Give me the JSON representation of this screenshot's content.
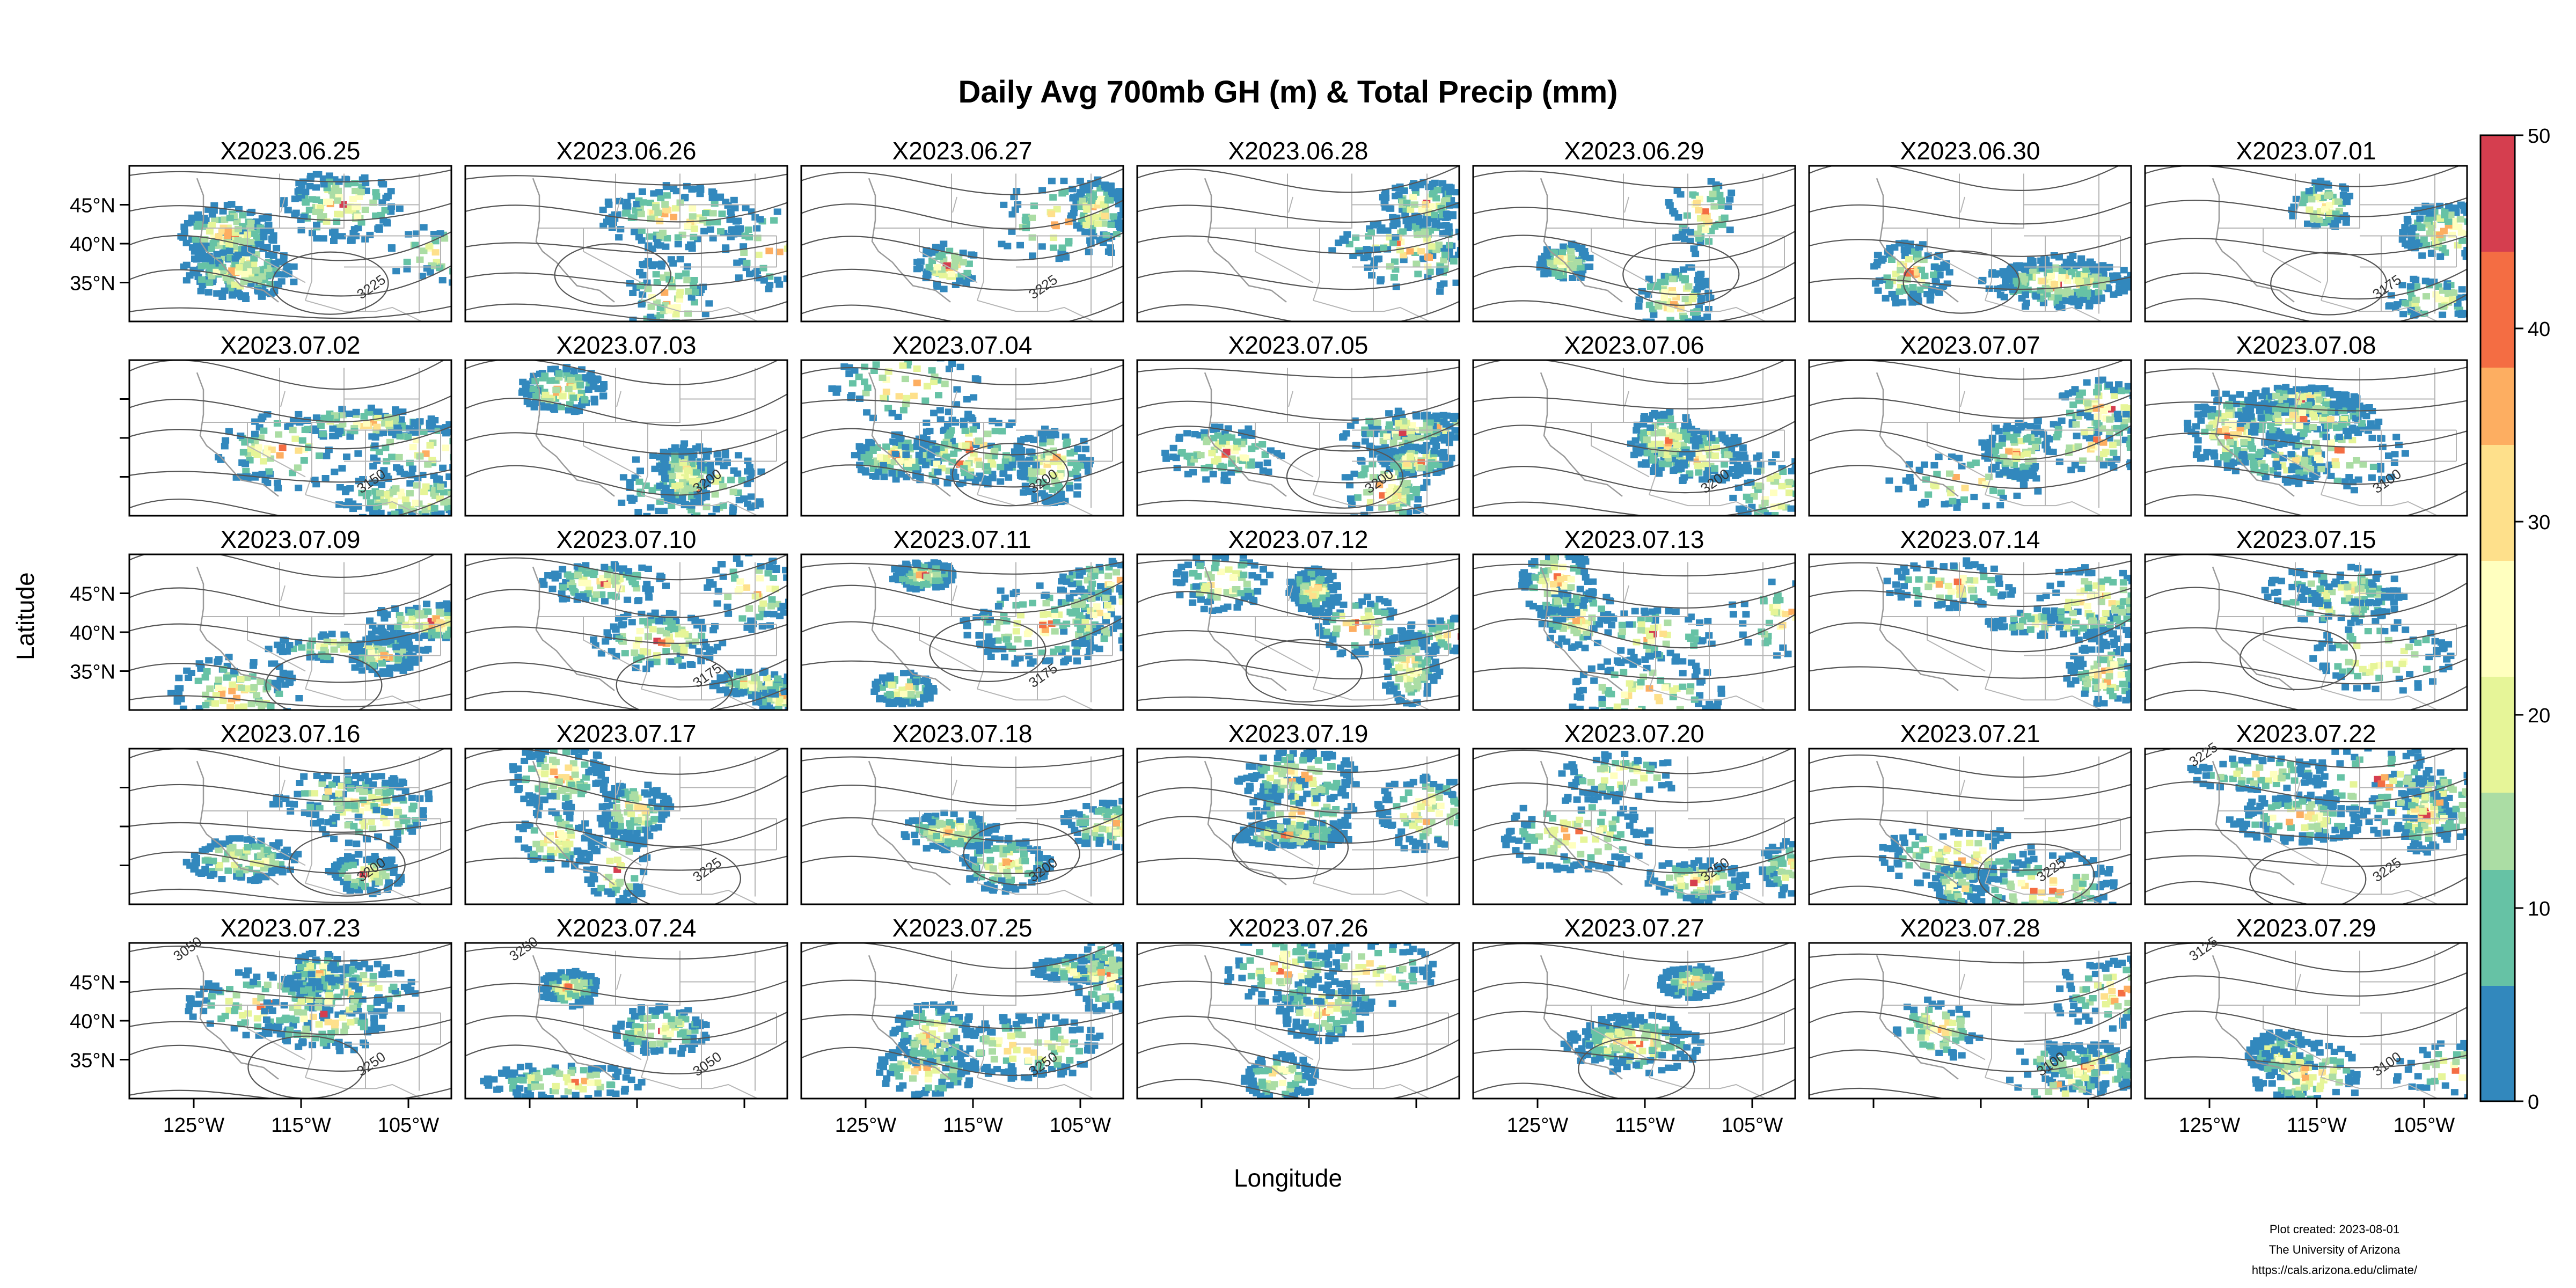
{
  "title": "Daily Avg 700mb GH (m) & Total Precip (mm)",
  "xlabel": "Longitude",
  "ylabel": "Latitude",
  "credits": [
    "Plot created: 2023-08-01",
    "The University of Arizona",
    "https://cals.arizona.edu/climate/"
  ],
  "panels": [
    "X2023.06.25",
    "X2023.06.26",
    "X2023.06.27",
    "X2023.06.28",
    "X2023.06.29",
    "X2023.06.30",
    "X2023.07.01",
    "X2023.07.02",
    "X2023.07.03",
    "X2023.07.04",
    "X2023.07.05",
    "X2023.07.06",
    "X2023.07.07",
    "X2023.07.08",
    "X2023.07.09",
    "X2023.07.10",
    "X2023.07.11",
    "X2023.07.12",
    "X2023.07.13",
    "X2023.07.14",
    "X2023.07.15",
    "X2023.07.16",
    "X2023.07.17",
    "X2023.07.18",
    "X2023.07.19",
    "X2023.07.20",
    "X2023.07.21",
    "X2023.07.22",
    "X2023.07.23",
    "X2023.07.24",
    "X2023.07.25",
    "X2023.07.26",
    "X2023.07.27",
    "X2023.07.28",
    "X2023.07.29"
  ],
  "lat_ticks": [
    45,
    40,
    35
  ],
  "lat_tick_labels": [
    "45°N",
    "40°N",
    "35°N"
  ],
  "lon_ticks": [
    -125,
    -115,
    -105
  ],
  "lon_tick_labels": [
    "125°W",
    "115°W",
    "105°W"
  ],
  "lon_range": [
    -131,
    -101
  ],
  "lat_range": [
    30,
    50
  ],
  "contour_labels": [
    {
      "panel": 0,
      "text": "3225"
    },
    {
      "panel": 2,
      "text": "3225"
    },
    {
      "panel": 6,
      "text": "3175"
    },
    {
      "panel": 7,
      "text": "3150"
    },
    {
      "panel": 8,
      "text": "3200"
    },
    {
      "panel": 9,
      "text": "3200"
    },
    {
      "panel": 10,
      "text": "3200"
    },
    {
      "panel": 11,
      "text": "3200"
    },
    {
      "panel": 13,
      "text": "3100"
    },
    {
      "panel": 15,
      "text": "3175"
    },
    {
      "panel": 16,
      "text": "3175"
    },
    {
      "panel": 21,
      "text": "3200"
    },
    {
      "panel": 22,
      "text": "3225"
    },
    {
      "panel": 23,
      "text": "3200"
    },
    {
      "panel": 25,
      "text": "3250"
    },
    {
      "panel": 26,
      "text": "3225"
    },
    {
      "panel": 27,
      "text": "3225"
    },
    {
      "panel": 27,
      "text": "3225"
    },
    {
      "panel": 28,
      "text": "3250"
    },
    {
      "panel": 28,
      "text": "3050"
    },
    {
      "panel": 29,
      "text": "3050"
    },
    {
      "panel": 29,
      "text": "3250"
    },
    {
      "panel": 30,
      "text": "3250"
    },
    {
      "panel": 33,
      "text": "3100"
    },
    {
      "panel": 34,
      "text": "3100"
    },
    {
      "panel": 34,
      "text": "3125"
    }
  ],
  "colorbar": {
    "min": 0,
    "max": 50,
    "ticks": [
      0,
      10,
      20,
      30,
      40,
      50
    ],
    "tick_labels": [
      "0",
      "10",
      "20",
      "30",
      "40",
      "50"
    ],
    "colors": [
      "#3288bd",
      "#66c2a5",
      "#abdda4",
      "#e6f598",
      "#ffffbf",
      "#fee08b",
      "#fdae61",
      "#f46d43",
      "#d53e4f"
    ]
  }
}
